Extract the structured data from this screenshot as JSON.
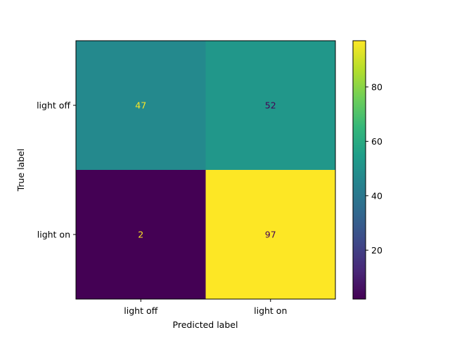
{
  "chart_data": {
    "type": "heatmap",
    "title": "",
    "xlabel": "Predicted label",
    "ylabel": "True label",
    "x_categories": [
      "light off",
      "light on"
    ],
    "y_categories": [
      "light off",
      "light on"
    ],
    "values": [
      [
        47,
        52
      ],
      [
        2,
        97
      ]
    ],
    "colormap": "viridis",
    "colorbar": {
      "range": [
        2,
        97
      ],
      "ticks": [
        20,
        40,
        60,
        80
      ],
      "tick_labels": [
        "20",
        "40",
        "60",
        "80"
      ]
    },
    "cell_text_colors": {
      "on_dark": "#fde725",
      "on_light": "#440154"
    }
  }
}
